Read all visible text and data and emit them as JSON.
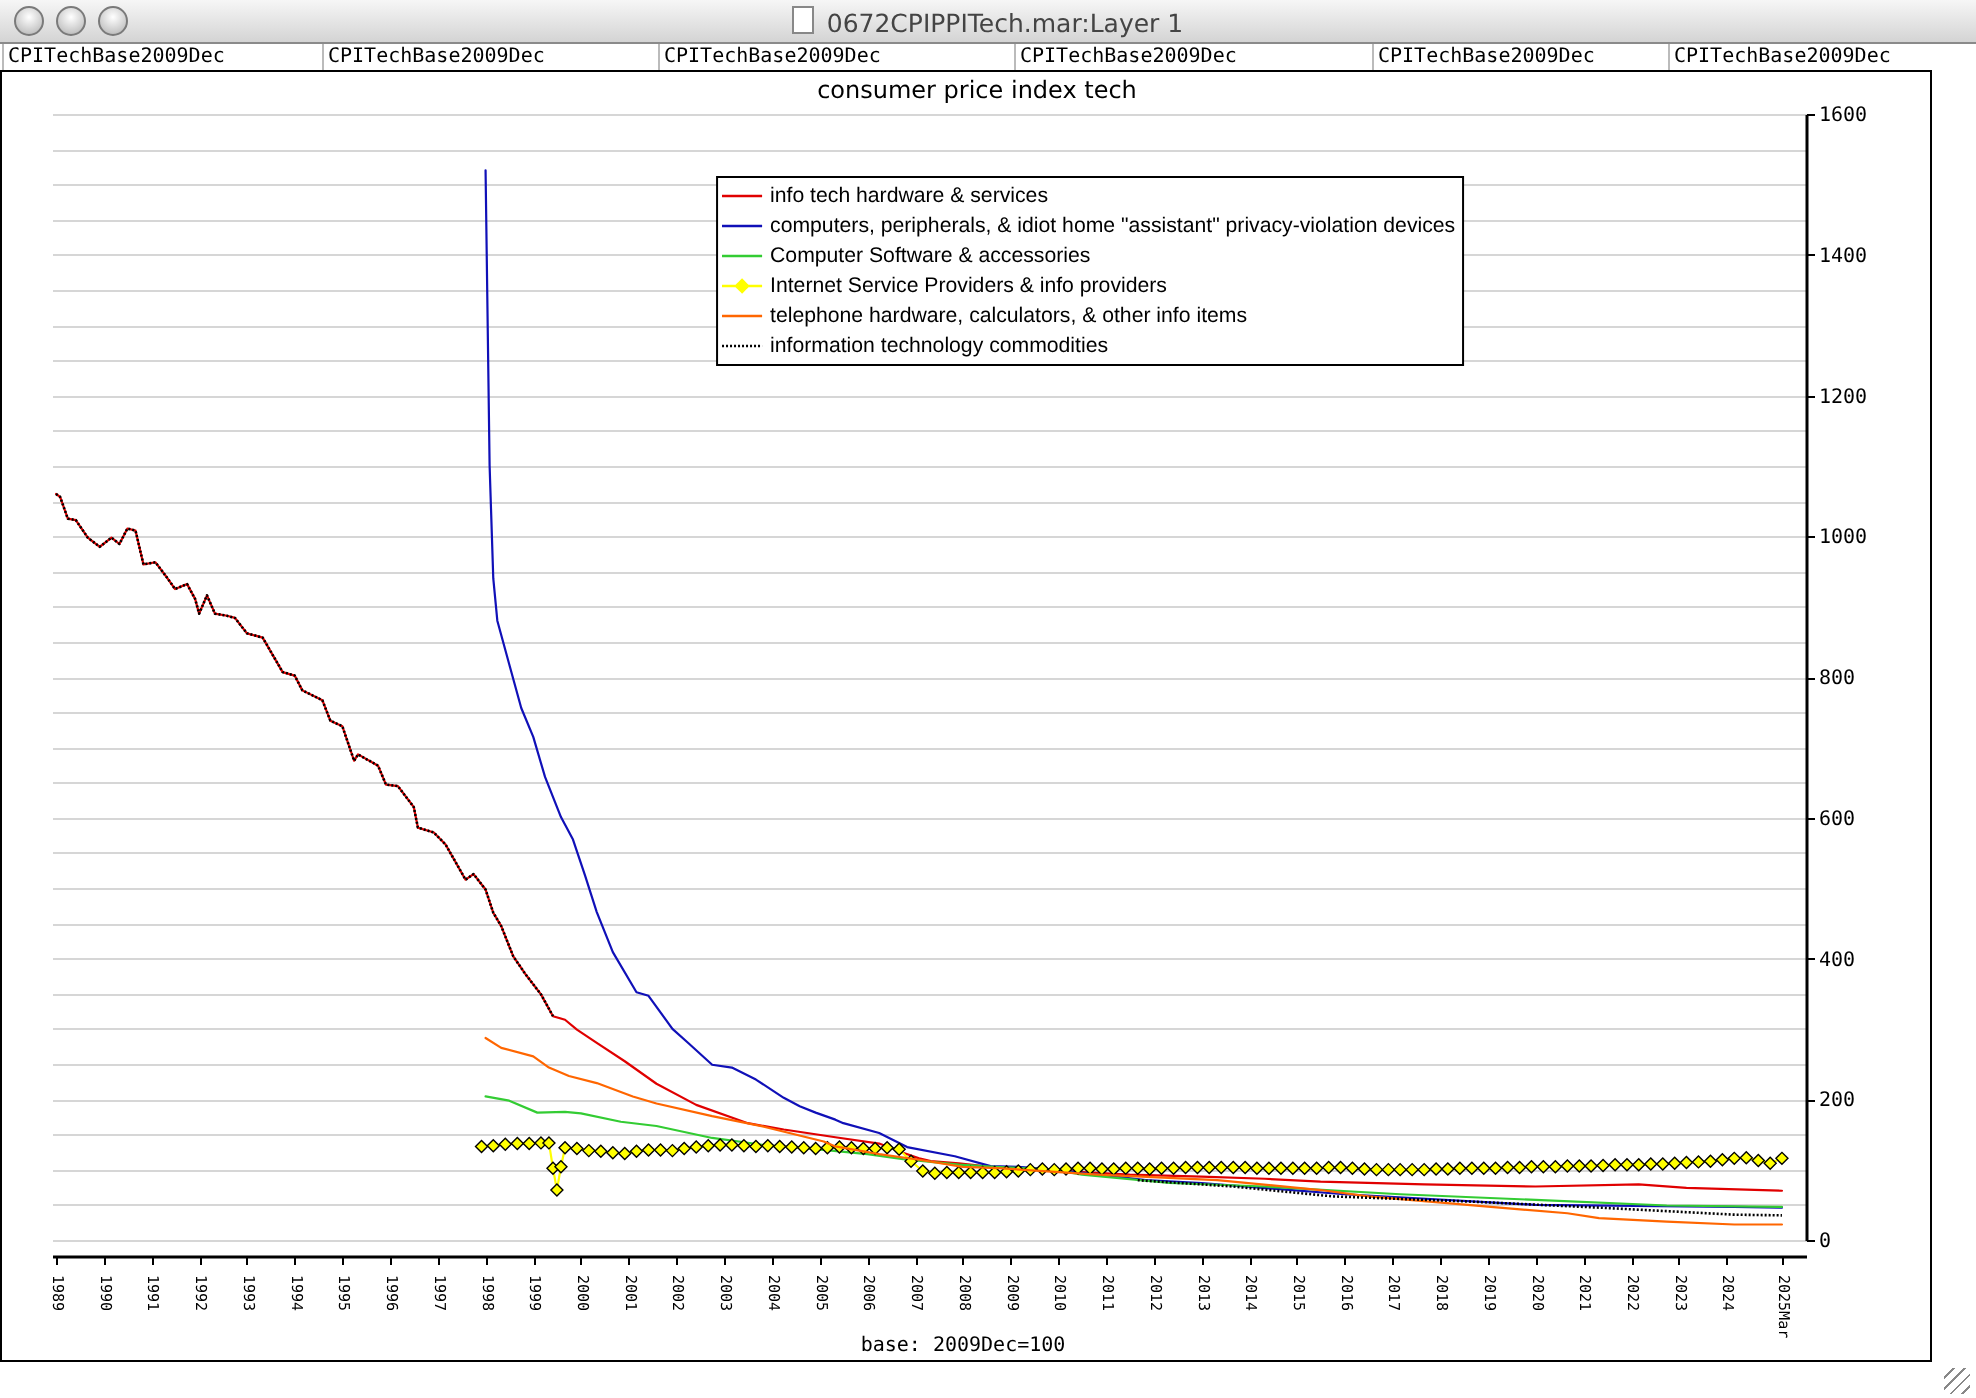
{
  "chart_data": {
    "type": "line",
    "title": "consumer price index tech",
    "xlabel": "base: 2009Dec=100",
    "annotations": [
      "0672CPIPPITech.mar:Layer 1",
      "CPITechBase2009Dec",
      "CPITechBase2009Dec",
      "CPITechBase2009Dec",
      "CPITechBase2009Dec",
      "CPITechBase2009Dec",
      "CPITechBase2009Dec"
    ],
    "xlim": [
      "1988-12",
      "2025-09"
    ],
    "xticks": [
      "1989",
      "1990",
      "1991",
      "1992",
      "1993",
      "1994",
      "1995",
      "1996",
      "1997",
      "1998",
      "1999",
      "2000",
      "2001",
      "2002",
      "2003",
      "2004",
      "2005",
      "2006",
      "2007",
      "2008",
      "2009",
      "2010",
      "2011",
      "2012",
      "2013",
      "2014",
      "2015",
      "2016",
      "2017",
      "2018",
      "2019",
      "2020",
      "2021",
      "2022",
      "2023",
      "2024",
      {
        "value": "2025-03",
        "label": "2025Mar"
      }
    ],
    "ylim": [
      0,
      1600
    ],
    "yticks": [
      0,
      {
        "value": 50,
        "label": null
      },
      {
        "value": 100,
        "label": null
      },
      {
        "value": 150,
        "label": null
      },
      200,
      {
        "value": 250,
        "label": null
      },
      {
        "value": 300,
        "label": null
      },
      {
        "value": 350,
        "label": null
      },
      400,
      {
        "value": 450,
        "label": null
      },
      {
        "value": 500,
        "label": null
      },
      {
        "value": 550,
        "label": null
      },
      600,
      {
        "value": 650,
        "label": null
      },
      {
        "value": 700,
        "label": null
      },
      {
        "value": 750,
        "label": null
      },
      800,
      {
        "value": 850,
        "label": null
      },
      {
        "value": 900,
        "label": null
      },
      {
        "value": 950,
        "label": null
      },
      1000,
      {
        "value": 1050,
        "label": null
      },
      {
        "value": 1100,
        "label": null
      },
      {
        "value": 1150,
        "label": null
      },
      1200,
      {
        "value": 1250,
        "label": null
      },
      {
        "value": 1300,
        "label": null
      },
      {
        "value": 1350,
        "label": null
      },
      1400,
      {
        "value": 1450,
        "label": null
      },
      {
        "value": 1500,
        "label": null
      },
      {
        "value": 1550,
        "label": null
      },
      1600
    ],
    "grid": "y",
    "legend": "top",
    "marker": "none",
    "line_style": "solid",
    "series": [
      {
        "name": "info tech hardware & services",
        "color": "#e00000",
        "x": [
          "1989-01",
          "1989-02",
          "1989-04",
          "1989-06",
          "1989-09",
          "1989-12",
          "1990-03",
          "1990-05",
          "1990-07",
          "1990-09",
          "1990-11",
          "1991-02",
          "1991-05",
          "1991-07",
          "1991-10",
          "1991-12",
          "1992-01",
          "1992-03",
          "1992-05",
          "1992-08",
          "1992-10",
          "1993-01",
          "1993-05",
          "1993-10",
          "1994-01",
          "1994-03",
          "1994-08",
          "1994-10",
          "1995-01",
          "1995-04",
          "1995-05",
          "1995-10",
          "1995-12",
          "1996-03",
          "1996-07",
          "1996-08",
          "1996-12",
          "1997-03",
          "1997-08",
          "1997-10",
          "1998-01",
          "1998-03",
          "1998-05",
          "1998-08",
          "1998-11",
          "1999-03",
          "1999-06",
          "1999-09",
          "1999-12",
          "2000-05",
          "2000-12",
          "2001-08",
          "2002-06",
          "2003-07",
          "2004-04",
          "2005-05",
          "2006-04",
          "2006-10",
          "2007-02",
          "2007-05",
          "2007-12",
          "2008-08",
          "2009-12",
          "2010-06",
          "2011-07",
          "2013-01",
          "2014-05",
          "2015-07",
          "2017-09",
          "2020-01",
          "2022-03",
          "2023-03",
          "2025-03"
        ],
        "values": [
          1060,
          1056,
          1025,
          1023,
          998,
          985,
          998,
          989,
          1011,
          1008,
          960,
          963,
          941,
          925,
          932,
          911,
          890,
          916,
          890,
          887,
          884,
          862,
          856,
          807,
          802,
          781,
          767,
          738,
          730,
          681,
          690,
          674,
          647,
          645,
          615,
          586,
          579,
          562,
          512,
          520,
          498,
          465,
          446,
          403,
          378,
          349,
          318,
          313,
          299,
          280,
          254,
          222,
          192,
          166,
          157,
          146,
          137,
          124,
          116,
          112,
          109,
          104,
          100,
          97,
          93,
          90,
          87,
          83,
          79,
          76,
          79,
          74,
          70
        ]
      },
      {
        "name": "computers, peripherals, & idiot home \"assistant\" privacy-violation devices",
        "color": "#1010b8",
        "x": [
          "1998-01",
          "1998-02",
          "1998-03",
          "1998-04",
          "1998-07",
          "1998-10",
          "1999-01",
          "1999-04",
          "1999-08",
          "1999-11",
          "2000-02",
          "2000-05",
          "2000-09",
          "2001-03",
          "2001-06",
          "2001-12",
          "2002-04",
          "2002-10",
          "2003-03",
          "2003-09",
          "2004-04",
          "2004-08",
          "2004-12",
          "2005-05",
          "2005-07",
          "2006-04",
          "2006-11",
          "2007-11",
          "2008-08",
          "2009-03",
          "2009-12",
          "2011-11",
          "2013-01",
          "2016-01",
          "2020-01",
          "2024-03",
          "2025-03"
        ],
        "values": [
          1520,
          1100,
          940,
          880,
          818,
          756,
          715,
          658,
          601,
          569,
          518,
          466,
          409,
          352,
          347,
          300,
          280,
          249,
          245,
          228,
          202,
          190,
          181,
          171,
          166,
          152,
          132,
          119,
          105,
          104,
          100,
          85,
          81,
          65,
          50,
          47,
          46
        ]
      },
      {
        "name": "Computer Software & accessories",
        "color": "#33cc33",
        "x": [
          "1998-01",
          "1998-07",
          "1999-02",
          "1999-09",
          "2000-01",
          "2000-11",
          "2001-08",
          "2002-10",
          "2003-11",
          "2005-02",
          "2006-01",
          "2006-10",
          "2007-12",
          "2008-09",
          "2009-12",
          "2010-07",
          "2012-05",
          "2014-05",
          "2017-03",
          "2020-01",
          "2022-10",
          "2025-03"
        ],
        "values": [
          204,
          198,
          181,
          182,
          180,
          168,
          162,
          145,
          135,
          128,
          122,
          115,
          107,
          104,
          100,
          93,
          81,
          76,
          65,
          57,
          49,
          47
        ]
      },
      {
        "name": "Internet Service Providers & info providers",
        "color": "#ffff00",
        "marker": "diamond",
        "x": [
          "1997-12",
          "1998-03",
          "1998-06",
          "1998-09",
          "1998-12",
          "1999-03",
          "1999-05",
          "1999-06",
          "1999-07",
          "1999-08",
          "1999-09",
          "1999-12",
          "2000-03",
          "2000-06",
          "2000-09",
          "2000-12",
          "2001-03",
          "2001-06",
          "2001-09",
          "2001-12",
          "2002-03",
          "2002-06",
          "2002-09",
          "2002-12",
          "2003-03",
          "2003-06",
          "2003-09",
          "2003-12",
          "2004-03",
          "2004-06",
          "2004-09",
          "2004-12",
          "2005-03",
          "2005-06",
          "2005-09",
          "2005-12",
          "2006-03",
          "2006-06",
          "2006-09",
          "2006-12",
          "2007-03",
          "2007-06",
          "2007-09",
          "2007-12",
          "2008-03",
          "2008-06",
          "2008-09",
          "2008-12",
          "2009-03",
          "2009-06",
          "2009-09",
          "2009-12",
          "2010-03",
          "2010-06",
          "2010-09",
          "2010-12",
          "2011-03",
          "2011-06",
          "2011-09",
          "2011-12",
          "2012-03",
          "2012-06",
          "2012-09",
          "2012-12",
          "2013-03",
          "2013-06",
          "2013-09",
          "2013-12",
          "2014-03",
          "2014-06",
          "2014-09",
          "2014-12",
          "2015-03",
          "2015-06",
          "2015-09",
          "2015-12",
          "2016-03",
          "2016-06",
          "2016-09",
          "2016-12",
          "2017-03",
          "2017-06",
          "2017-09",
          "2017-12",
          "2018-03",
          "2018-06",
          "2018-09",
          "2018-12",
          "2019-03",
          "2019-06",
          "2019-09",
          "2019-12",
          "2020-03",
          "2020-06",
          "2020-09",
          "2020-12",
          "2021-03",
          "2021-06",
          "2021-09",
          "2021-12",
          "2022-03",
          "2022-06",
          "2022-09",
          "2022-12",
          "2023-03",
          "2023-06",
          "2023-09",
          "2023-12",
          "2024-03",
          "2024-06",
          "2024-09",
          "2024-12",
          "2025-03"
        ],
        "values": [
          133,
          134,
          136,
          137,
          137,
          138,
          138,
          102,
          71,
          104,
          131,
          130,
          127,
          126,
          124,
          123,
          126,
          128,
          128,
          127,
          130,
          132,
          134,
          135,
          135,
          134,
          133,
          134,
          133,
          132,
          131,
          130,
          131,
          132,
          131,
          130,
          130,
          131,
          129,
          112,
          98,
          95,
          96,
          96,
          96,
          96,
          96,
          97,
          98,
          100,
          101,
          100,
          101,
          102,
          102,
          101,
          101,
          102,
          102,
          101,
          102,
          102,
          103,
          103,
          103,
          103,
          103,
          103,
          102,
          102,
          102,
          102,
          102,
          102,
          103,
          103,
          102,
          101,
          100,
          100,
          100,
          100,
          100,
          101,
          101,
          102,
          102,
          102,
          102,
          103,
          103,
          104,
          104,
          104,
          105,
          105,
          105,
          106,
          107,
          107,
          107,
          108,
          108,
          109,
          110,
          111,
          112,
          114,
          116,
          117,
          113,
          109,
          116
        ]
      },
      {
        "name": "telephone hardware, calculators, & other info items",
        "color": "#ff6600",
        "x": [
          "1998-01",
          "1998-05",
          "1999-01",
          "1999-05",
          "1999-10",
          "2000-05",
          "2001-02",
          "2001-08",
          "2002-10",
          "2003-11",
          "2005-02",
          "2005-05",
          "2006-04",
          "2007-02",
          "2008-01",
          "2008-10",
          "2010-11",
          "2013-05",
          "2015-07",
          "2016-07",
          "2019-04",
          "2020-09",
          "2021-05",
          "2022-10",
          "2024-03",
          "2025-03"
        ],
        "values": [
          287,
          273,
          261,
          245,
          233,
          223,
          204,
          194,
          176,
          161,
          140,
          133,
          122,
          114,
          104,
          102,
          93,
          85,
          71,
          62,
          46,
          38,
          31,
          26,
          22,
          22
        ]
      },
      {
        "name": "information technology commodities",
        "color": "#000000",
        "line_style": "dotted",
        "x": [
          "1989-01",
          "1989-02",
          "1989-04",
          "1989-06",
          "1989-09",
          "1989-12",
          "1990-03",
          "1990-05",
          "1990-07",
          "1990-09",
          "1990-11",
          "1991-02",
          "1991-05",
          "1991-07",
          "1991-10",
          "1991-12",
          "1992-01",
          "1992-03",
          "1992-05",
          "1992-08",
          "1992-10",
          "1993-01",
          "1993-05",
          "1993-10",
          "1994-01",
          "1994-03",
          "1994-08",
          "1994-10",
          "1995-01",
          "1995-04",
          "1995-05",
          "1995-10",
          "1995-12",
          "1996-03",
          "1996-07",
          "1996-08",
          "1996-12",
          "1997-03",
          "1997-08",
          "1997-10",
          "1998-01",
          "1998-03",
          "1998-05",
          "1998-08",
          "1998-11",
          "1999-03",
          "1999-06",
          "2005-01",
          "2011-09",
          "2013-09",
          "2015-10",
          "2018-07",
          "2021-05",
          "2024-03",
          "2025-03"
        ],
        "values": [
          1060,
          1056,
          1025,
          1023,
          998,
          985,
          998,
          989,
          1011,
          1008,
          960,
          963,
          941,
          925,
          932,
          911,
          890,
          916,
          890,
          887,
          884,
          862,
          856,
          807,
          802,
          781,
          767,
          738,
          730,
          681,
          690,
          674,
          647,
          645,
          615,
          586,
          579,
          562,
          512,
          520,
          498,
          465,
          446,
          403,
          378,
          349,
          318,
          null,
          85,
          76,
          62,
          55,
          46,
          36,
          35
        ]
      }
    ]
  }
}
